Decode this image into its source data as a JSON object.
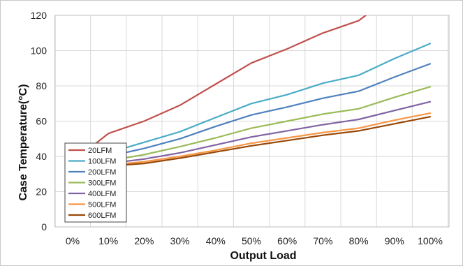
{
  "chart_data": {
    "type": "line",
    "xlabel": "Output Load",
    "ylabel": "Case Temperature(°C)",
    "ylim": [
      0,
      120
    ],
    "yticks": [
      0,
      20,
      40,
      60,
      80,
      100,
      120
    ],
    "categories": [
      "0%",
      "10%",
      "20%",
      "30%",
      "40%",
      "50%",
      "60%",
      "70%",
      "80%",
      "90%",
      "100%"
    ],
    "x": [
      0,
      10,
      20,
      30,
      40,
      50,
      60,
      70,
      80,
      90,
      100
    ],
    "grid": true,
    "legend_position": "bottom-left",
    "series": [
      {
        "name": "20LFM",
        "color": "#c0504d",
        "points": [
          [
            0,
            40
          ],
          [
            5,
            45
          ],
          [
            10,
            53
          ],
          [
            20,
            60
          ],
          [
            30,
            69
          ],
          [
            40,
            81
          ],
          [
            50,
            93
          ],
          [
            60,
            101
          ],
          [
            70,
            110
          ],
          [
            80,
            117
          ],
          [
            82,
            120
          ]
        ]
      },
      {
        "name": "100LFM",
        "color": "#4bacc6",
        "points": [
          [
            0,
            37
          ],
          [
            10,
            42
          ],
          [
            20,
            48
          ],
          [
            30,
            54
          ],
          [
            40,
            62
          ],
          [
            50,
            70
          ],
          [
            60,
            75
          ],
          [
            70,
            81.5
          ],
          [
            80,
            86
          ],
          [
            90,
            95.5
          ],
          [
            100,
            104
          ]
        ]
      },
      {
        "name": "200LFM",
        "color": "#4f81bd",
        "points": [
          [
            0,
            36
          ],
          [
            10,
            40
          ],
          [
            20,
            44.5
          ],
          [
            30,
            50
          ],
          [
            40,
            57
          ],
          [
            50,
            63.5
          ],
          [
            60,
            68
          ],
          [
            70,
            73
          ],
          [
            80,
            77
          ],
          [
            90,
            85
          ],
          [
            100,
            92.5
          ]
        ]
      },
      {
        "name": "300LFM",
        "color": "#9bbb59",
        "points": [
          [
            0,
            35
          ],
          [
            10,
            37.5
          ],
          [
            20,
            41
          ],
          [
            30,
            45.5
          ],
          [
            40,
            50.5
          ],
          [
            50,
            56
          ],
          [
            60,
            60
          ],
          [
            70,
            64
          ],
          [
            80,
            67
          ],
          [
            90,
            73.5
          ],
          [
            100,
            79.5
          ]
        ]
      },
      {
        "name": "400LFM",
        "color": "#8064a2",
        "points": [
          [
            0,
            34.5
          ],
          [
            10,
            36
          ],
          [
            20,
            38.5
          ],
          [
            30,
            42
          ],
          [
            40,
            46.5
          ],
          [
            50,
            51
          ],
          [
            60,
            54.5
          ],
          [
            70,
            58
          ],
          [
            80,
            61
          ],
          [
            90,
            66
          ],
          [
            100,
            71
          ]
        ]
      },
      {
        "name": "500LFM",
        "color": "#f79646",
        "points": [
          [
            0,
            34
          ],
          [
            10,
            35
          ],
          [
            20,
            37
          ],
          [
            30,
            40
          ],
          [
            40,
            43.5
          ],
          [
            50,
            47.5
          ],
          [
            60,
            50.5
          ],
          [
            70,
            53.5
          ],
          [
            80,
            56
          ],
          [
            90,
            60.5
          ],
          [
            100,
            64.5
          ]
        ]
      },
      {
        "name": "600LFM",
        "color": "#984807",
        "points": [
          [
            0,
            33.5
          ],
          [
            10,
            34.5
          ],
          [
            20,
            36
          ],
          [
            30,
            39
          ],
          [
            40,
            42.5
          ],
          [
            50,
            46
          ],
          [
            60,
            49
          ],
          [
            70,
            52
          ],
          [
            80,
            54.5
          ],
          [
            90,
            58.5
          ],
          [
            100,
            62.5
          ]
        ]
      }
    ]
  }
}
